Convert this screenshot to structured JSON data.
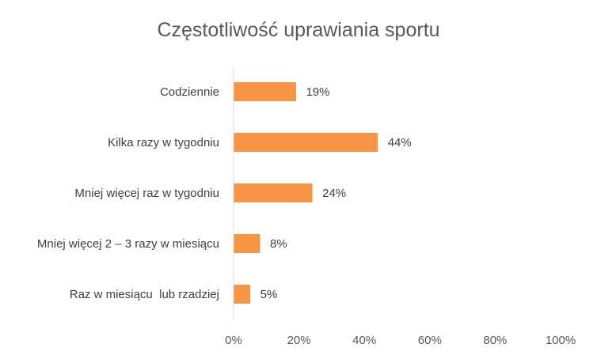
{
  "chart_data": {
    "type": "bar",
    "orientation": "horizontal",
    "title": "Częstotliwość uprawiania sportu",
    "categories": [
      "Codziennie",
      "Kilka razy w tygodniu",
      "Mniej więcej raz w tygodniu",
      "Mniej więcej 2 – 3 razy w miesiącu",
      "Raz w miesiącu  lub rzadziej"
    ],
    "values": [
      19,
      44,
      24,
      8,
      5
    ],
    "data_labels": [
      "19%",
      "44%",
      "24%",
      "8%",
      "5%"
    ],
    "xlim": [
      0,
      100
    ],
    "x_ticks": [
      0,
      20,
      40,
      60,
      80,
      100
    ],
    "x_tick_labels": [
      "0%",
      "20%",
      "40%",
      "60%",
      "80%",
      "100%"
    ],
    "xlabel": "",
    "ylabel": "",
    "grid": false,
    "legend": "none",
    "bar_color": "#F79646"
  }
}
